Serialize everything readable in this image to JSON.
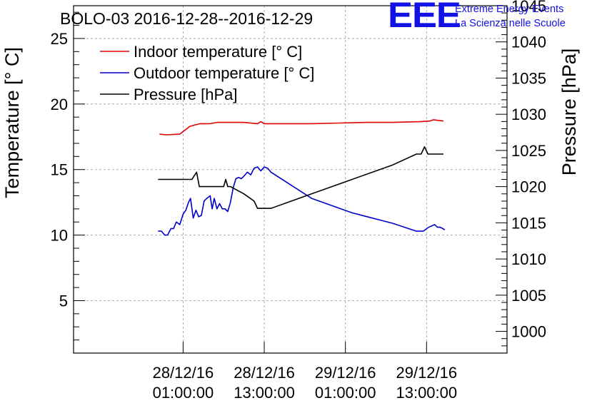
{
  "branding": {
    "logo": "EEE",
    "line1": "Extreme Energy Events",
    "line2": "La Scienza nelle Scuole",
    "color": "#1212e6"
  },
  "chart_data": {
    "type": "line",
    "title": "BOLO-03 2016-12-28--2016-12-29",
    "ylabel": "Temperature [° C]",
    "y2label": "Pressure [hPa]",
    "xlabel": "",
    "ylim": [
      1,
      27.5
    ],
    "y2lim": [
      997,
      1045
    ],
    "xlim_hours": [
      -15.2,
      48.9
    ],
    "x_unit": "hours since 28/12/16 00:00:00",
    "grid": true,
    "legend_position": "top-left",
    "y_ticks": [
      5,
      10,
      15,
      20,
      25
    ],
    "y2_ticks": [
      1000,
      1005,
      1010,
      1015,
      1020,
      1025,
      1030,
      1035,
      1040,
      1045
    ],
    "x_ticks": [
      {
        "hour": 1,
        "line1": "28/12/16",
        "line2": "01:00:00"
      },
      {
        "hour": 13,
        "line1": "28/12/16",
        "line2": "13:00:00"
      },
      {
        "hour": 25,
        "line1": "29/12/16",
        "line2": "01:00:00"
      },
      {
        "hour": 37,
        "line1": "29/12/16",
        "line2": "13:00:00"
      }
    ],
    "series": [
      {
        "name": "Indoor temperature [° C]",
        "color": "#e00000",
        "axis": "left",
        "x": [
          -2.5,
          -1.5,
          0.5,
          2,
          3.5,
          5,
          6,
          8,
          10,
          12,
          12.5,
          13,
          14,
          16,
          20,
          24,
          28,
          32,
          36,
          37.5,
          38,
          39.5
        ],
        "y": [
          17.7,
          17.65,
          17.7,
          18.3,
          18.5,
          18.5,
          18.6,
          18.6,
          18.6,
          18.5,
          18.65,
          18.5,
          18.5,
          18.5,
          18.5,
          18.55,
          18.6,
          18.6,
          18.65,
          18.7,
          18.8,
          18.7
        ]
      },
      {
        "name": "Outdoor temperature [° C]",
        "color": "#0000cc",
        "axis": "left",
        "x": [
          -2.7,
          -2.2,
          -1.7,
          -1.3,
          -0.8,
          -0.4,
          0,
          0.5,
          1,
          1.4,
          1.8,
          2.1,
          2.5,
          2.9,
          3.3,
          3.7,
          4.1,
          4.5,
          5,
          5.3,
          5.6,
          6,
          6.4,
          6.8,
          7.2,
          7.6,
          8,
          8.4,
          8.8,
          9.2,
          9.6,
          10,
          10.5,
          11,
          11.5,
          12,
          12.5,
          13,
          13.5,
          14,
          20,
          26,
          32,
          35.5,
          36.5,
          37.3,
          38.2,
          38.6,
          39,
          39.4,
          39.7
        ],
        "y": [
          10.3,
          10.3,
          10.0,
          10.0,
          10.5,
          10.5,
          11.0,
          10.8,
          11.6,
          11.9,
          12.5,
          12.8,
          11.3,
          11.9,
          11.4,
          11.5,
          12.6,
          12.8,
          13.0,
          12.0,
          12.8,
          12.0,
          12.4,
          12.0,
          12.0,
          11.8,
          12.5,
          13.6,
          14.3,
          14.4,
          14.3,
          14.5,
          14.8,
          14.6,
          15.1,
          15.2,
          14.9,
          15.2,
          15.1,
          14.8,
          12.8,
          11.7,
          10.9,
          10.3,
          10.3,
          10.6,
          10.8,
          10.6,
          10.6,
          10.5,
          10.4
        ]
      },
      {
        "name": "Pressure [hPa]",
        "color": "#000000",
        "axis": "right",
        "x": [
          -2.7,
          1,
          2.3,
          3,
          3.4,
          3.8,
          7,
          7.3,
          7.6,
          8,
          10,
          11.5,
          12,
          14,
          20,
          26,
          32,
          35.5,
          36.2,
          36.7,
          37.2,
          39.5
        ],
        "y": [
          1021,
          1021,
          1021,
          1022,
          1020,
          1020,
          1020,
          1021,
          1020,
          1020,
          1019,
          1018,
          1017,
          1017,
          1019,
          1021,
          1023,
          1024.5,
          1024.5,
          1025.5,
          1024.5,
          1024.5
        ]
      }
    ]
  }
}
